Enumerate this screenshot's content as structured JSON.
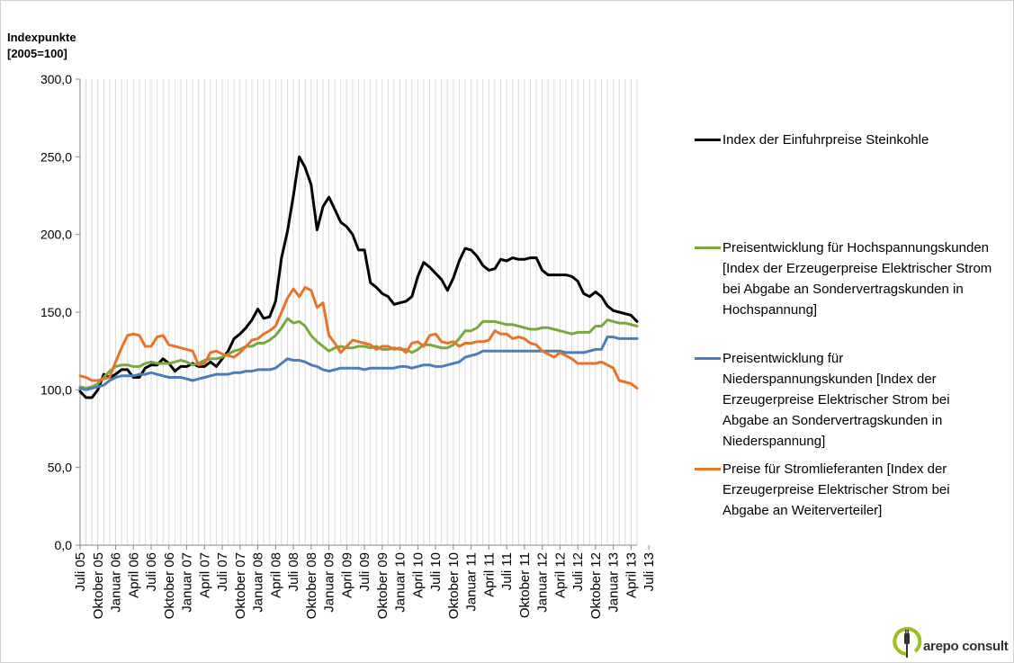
{
  "chart_data": {
    "type": "line",
    "ylabel": "Indexpunkte\n[2005=100]",
    "ylim": [
      0,
      300
    ],
    "yticks": [
      "0,0",
      "50,0",
      "100,0",
      "150,0",
      "200,0",
      "250,0",
      "300,0"
    ],
    "grid": "vertical",
    "legend_position": "right",
    "x_labels": [
      "Juli 05",
      "Oktober 05",
      "Januar 06",
      "April 06",
      "Juli 06",
      "Oktober 06",
      "Januar 07",
      "April 07",
      "Juli 07",
      "Oktober 07",
      "Januar 08",
      "April 08",
      "Juli 08",
      "Oktober 08",
      "Januar 09",
      "April 09",
      "Juli 09",
      "Oktober 09",
      "Januar 10",
      "April 10",
      "Juli 10",
      "Oktober 10",
      "Januar 11",
      "April 11",
      "Juli 11",
      "Oktober 11",
      "Januar 12",
      "April 12",
      "Juli 12",
      "Oktober 12",
      "Januar 13",
      "April 13",
      "Juli 13"
    ],
    "x_start": "2005-07",
    "x_end": "2013-07",
    "series": [
      {
        "name": "Index der Einfuhrpreise Steinkohle",
        "color": "#000000",
        "values": [
          99,
          95,
          95,
          100,
          110,
          108,
          110,
          113,
          113,
          108,
          108,
          114,
          116,
          116,
          120,
          117,
          112,
          115,
          115,
          117,
          115,
          115,
          118,
          115,
          120,
          125,
          133,
          136,
          140,
          145,
          152,
          146,
          147,
          157,
          185,
          202,
          225,
          250,
          243,
          232,
          203,
          218,
          224,
          216,
          208,
          205,
          200,
          190,
          190,
          169,
          166,
          162,
          160,
          155,
          156,
          157,
          160,
          173,
          182,
          179,
          175,
          171,
          164,
          172,
          183,
          191,
          190,
          186,
          180,
          177,
          178,
          184,
          183,
          185,
          184,
          184,
          185,
          185,
          177,
          174,
          174,
          174,
          174,
          173,
          170,
          162,
          160,
          163,
          160,
          154,
          151,
          150,
          149,
          148,
          144
        ]
      },
      {
        "name": "Preisentwicklung für Hochspannungskunden  [Index der Erzeugerpreise Elektrischer Strom bei Abgabe an Sondervertragskunden  in Hochspannung]",
        "color": "#78a83e",
        "values": [
          102,
          101,
          102,
          104,
          108,
          112,
          115,
          116,
          116,
          115,
          115,
          117,
          118,
          117,
          117,
          117,
          118,
          119,
          118,
          116,
          117,
          119,
          120,
          120,
          121,
          123,
          125,
          126,
          128,
          128,
          130,
          130,
          132,
          135,
          140,
          146,
          143,
          144,
          141,
          135,
          131,
          128,
          125,
          127,
          128,
          127,
          127,
          128,
          128,
          127,
          128,
          126,
          126,
          127,
          126,
          126,
          124,
          126,
          129,
          129,
          128,
          127,
          127,
          129,
          133,
          138,
          138,
          140,
          144,
          144,
          144,
          143,
          142,
          142,
          141,
          140,
          139,
          139,
          140,
          140,
          139,
          138,
          137,
          136,
          137,
          137,
          137,
          141,
          141,
          145,
          144,
          143,
          143,
          142,
          141
        ]
      },
      {
        "name": "Preisentwicklung für Niederspannungskunden  [Index der Erzeugerpreise Elektrischer Strom bei Abgabe an Sondervertragskunden  in Niederspannung]",
        "color": "#4a7ebb",
        "values": [
          101,
          100,
          101,
          102,
          103,
          106,
          108,
          109,
          109,
          109,
          110,
          110,
          111,
          110,
          109,
          108,
          108,
          108,
          107,
          106,
          107,
          108,
          109,
          110,
          110,
          110,
          111,
          111,
          112,
          112,
          113,
          113,
          113,
          114,
          117,
          120,
          119,
          119,
          118,
          116,
          115,
          113,
          112,
          113,
          114,
          114,
          114,
          114,
          113,
          114,
          114,
          114,
          114,
          114,
          115,
          115,
          114,
          115,
          116,
          116,
          115,
          115,
          116,
          117,
          118,
          121,
          122,
          123,
          125,
          125,
          125,
          125,
          125,
          125,
          125,
          125,
          125,
          125,
          125,
          125,
          125,
          125,
          124,
          124,
          124,
          124,
          125,
          126,
          126,
          134,
          134,
          133,
          133,
          133,
          133
        ]
      },
      {
        "name": "Preise für Stromlieferanten [Index der Erzeugerpreise Elektrischer Strom bei Abgabe an Weiterverteiler]",
        "color": "#e8732a",
        "values": [
          109,
          108,
          106,
          106,
          107,
          108,
          118,
          127,
          135,
          136,
          135,
          128,
          128,
          134,
          135,
          129,
          128,
          127,
          126,
          125,
          116,
          117,
          124,
          125,
          123,
          122,
          121,
          124,
          128,
          132,
          133,
          136,
          138,
          141,
          150,
          159,
          165,
          160,
          166,
          164,
          153,
          156,
          135,
          130,
          124,
          128,
          132,
          131,
          130,
          129,
          126,
          128,
          128,
          126,
          127,
          124,
          130,
          131,
          128,
          135,
          136,
          131,
          130,
          131,
          128,
          130,
          130,
          131,
          131,
          132,
          138,
          136,
          136,
          133,
          134,
          133,
          130,
          129,
          125,
          123,
          121,
          124,
          122,
          120,
          117,
          117,
          117,
          117,
          118,
          116,
          114,
          106,
          105,
          104,
          101
        ]
      }
    ]
  },
  "branding": {
    "logo_text": "arepo consult",
    "logo_color": "#9bbf1f"
  }
}
